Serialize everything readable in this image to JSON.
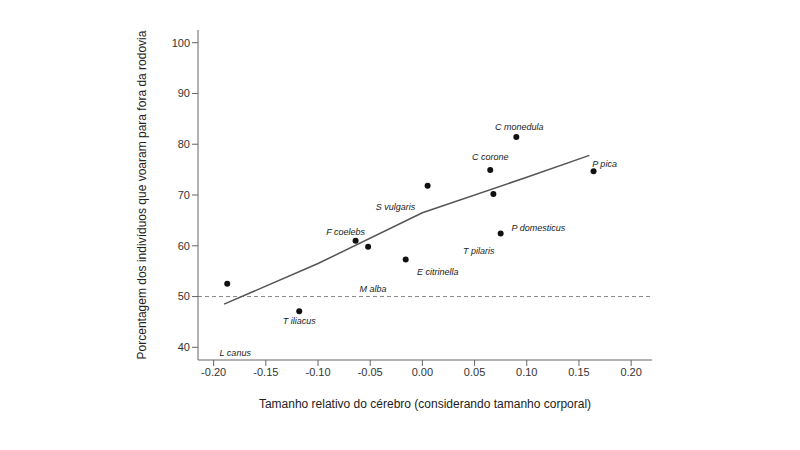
{
  "chart_data": {
    "type": "scatter",
    "x_label": "Tamanho relativo do cérebro (considerando tamanho corporal)",
    "y_label": "Porcentagem dos indivíduos que voaram para fora da rodovia",
    "xlim": [
      -0.215,
      0.22
    ],
    "ylim": [
      37.5,
      102.5
    ],
    "xticks": [
      {
        "value": -0.2,
        "label": "-0.20"
      },
      {
        "value": -0.15,
        "label": "-0.15"
      },
      {
        "value": -0.1,
        "label": "-0.10"
      },
      {
        "value": -0.05,
        "label": "-0.05"
      },
      {
        "value": 0,
        "label": "0.00"
      },
      {
        "value": 0.05,
        "label": "0.05"
      },
      {
        "value": 0.1,
        "label": "0.10"
      },
      {
        "value": 0.15,
        "label": "0.15"
      },
      {
        "value": 0.2,
        "label": "0.20"
      }
    ],
    "yticks": [
      40,
      50,
      60,
      70,
      80,
      90,
      100
    ],
    "color": "#111111",
    "marker": "circle",
    "points": [
      {
        "label": "L canus",
        "x": -0.187,
        "y": 52.5
      },
      {
        "label": "T iliacus",
        "x": -0.118,
        "y": 47.1
      },
      {
        "label": "F coelebs",
        "x": -0.064,
        "y": 61.0
      },
      {
        "label": "M alba",
        "x": -0.052,
        "y": 59.8
      },
      {
        "label": "E citrinella",
        "x": -0.016,
        "y": 57.3
      },
      {
        "label": "S vulgaris",
        "x": 0.005,
        "y": 71.8
      },
      {
        "label": "C corone",
        "x": 0.065,
        "y": 74.9
      },
      {
        "label": "P domesticus",
        "x": 0.068,
        "y": 70.2
      },
      {
        "label": "T pilaris",
        "x": 0.075,
        "y": 62.4
      },
      {
        "label": "C monedula",
        "x": 0.09,
        "y": 81.4
      },
      {
        "label": "P pica",
        "x": 0.164,
        "y": 74.7
      }
    ],
    "trend_line": {
      "x": [
        -0.19,
        -0.1,
        0,
        0.1,
        0.16
      ],
      "y": [
        48.5,
        56.5,
        66.5,
        73.5,
        77.8
      ],
      "color": "#555555"
    },
    "reference_line": {
      "y": 50,
      "line_style": "dashed",
      "color": "#888888"
    }
  }
}
